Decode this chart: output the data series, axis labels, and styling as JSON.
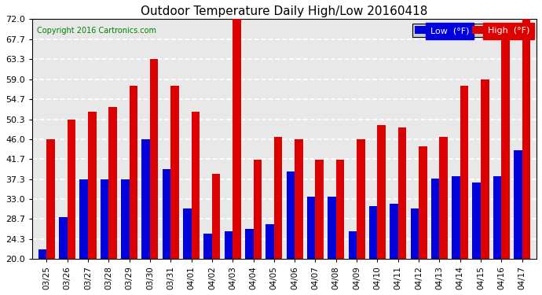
{
  "title": "Outdoor Temperature Daily High/Low 20160418",
  "copyright": "Copyright 2016 Cartronics.com",
  "legend_low_label": "Low  (°F)",
  "legend_high_label": "High  (°F)",
  "low_color": "#0000dd",
  "high_color": "#dd0000",
  "background_color": "#ffffff",
  "plot_bg_color": "#e8e8e8",
  "grid_color": "#ffffff",
  "ylim": [
    20.0,
    72.0
  ],
  "yticks": [
    20.0,
    24.3,
    28.7,
    33.0,
    37.3,
    41.7,
    46.0,
    50.3,
    54.7,
    59.0,
    63.3,
    67.7,
    72.0
  ],
  "dates": [
    "03/25",
    "03/26",
    "03/27",
    "03/28",
    "03/29",
    "03/30",
    "03/31",
    "04/01",
    "04/02",
    "04/03",
    "04/04",
    "04/05",
    "04/06",
    "04/07",
    "04/08",
    "04/09",
    "04/10",
    "04/11",
    "04/12",
    "04/13",
    "04/14",
    "04/15",
    "04/16",
    "04/17"
  ],
  "highs": [
    46.0,
    50.3,
    52.0,
    53.0,
    57.5,
    63.3,
    57.5,
    52.0,
    38.5,
    72.0,
    41.5,
    46.5,
    46.0,
    41.5,
    41.5,
    46.0,
    49.0,
    48.5,
    44.5,
    46.5,
    57.5,
    59.0,
    67.7,
    72.0
  ],
  "lows": [
    22.0,
    29.0,
    37.3,
    37.3,
    37.3,
    46.0,
    39.5,
    31.0,
    25.5,
    26.0,
    26.5,
    27.5,
    39.0,
    33.5,
    33.5,
    26.0,
    31.5,
    32.0,
    31.0,
    37.5,
    38.0,
    36.5,
    38.0,
    43.5
  ]
}
